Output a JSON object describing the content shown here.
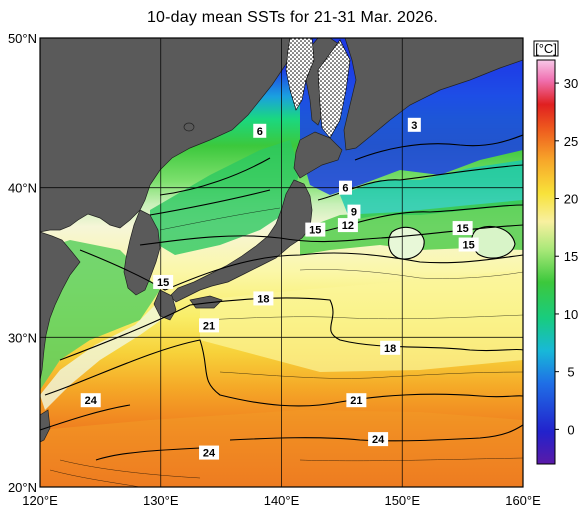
{
  "title": "10-day mean SSTs for 21-31 Mar. 2026.",
  "map": {
    "lon_labels": [
      "120°E",
      "130°E",
      "140°E",
      "150°E",
      "160°E"
    ],
    "lat_labels": [
      "50°N",
      "40°N",
      "30°N",
      "20°N"
    ],
    "lon_range": [
      120,
      160
    ],
    "lat_range": [
      20,
      50
    ],
    "grid_interval_deg": 10,
    "land_color": "#5a5a5a",
    "ice_pattern": "dotted",
    "contour_labels": [
      {
        "text": "6",
        "lon": 138.2,
        "lat": 43.8
      },
      {
        "text": "3",
        "lon": 151.0,
        "lat": 44.2
      },
      {
        "text": "6",
        "lon": 145.3,
        "lat": 40.0
      },
      {
        "text": "9",
        "lon": 146.0,
        "lat": 38.4
      },
      {
        "text": "12",
        "lon": 145.5,
        "lat": 37.5
      },
      {
        "text": "15",
        "lon": 142.8,
        "lat": 37.2
      },
      {
        "text": "15",
        "lon": 155.0,
        "lat": 37.3
      },
      {
        "text": "15",
        "lon": 155.5,
        "lat": 36.2
      },
      {
        "text": "15",
        "lon": 130.2,
        "lat": 33.7
      },
      {
        "text": "18",
        "lon": 138.5,
        "lat": 32.6
      },
      {
        "text": "21",
        "lon": 134.0,
        "lat": 30.8
      },
      {
        "text": "18",
        "lon": 149.0,
        "lat": 29.3
      },
      {
        "text": "24",
        "lon": 124.2,
        "lat": 25.8
      },
      {
        "text": "21",
        "lon": 146.2,
        "lat": 25.8
      },
      {
        "text": "24",
        "lon": 148.0,
        "lat": 23.2
      },
      {
        "text": "24",
        "lon": 134.0,
        "lat": 22.3
      }
    ]
  },
  "colorbar": {
    "unit": "[°C]",
    "ticks": [
      "30",
      "25",
      "20",
      "15",
      "10",
      "5",
      "0"
    ],
    "range": [
      -3,
      32
    ]
  }
}
